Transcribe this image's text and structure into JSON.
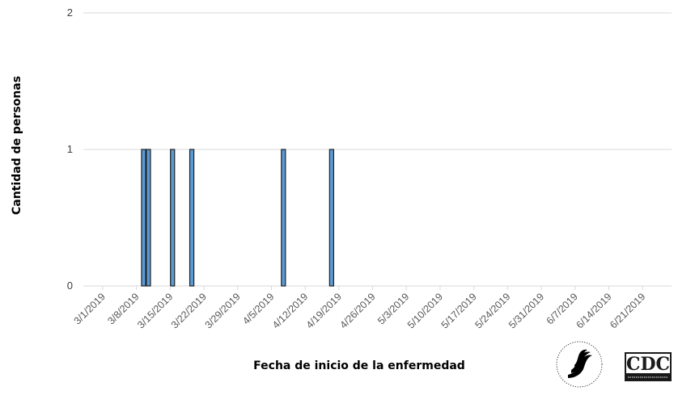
{
  "chart_data": {
    "type": "bar",
    "title": "",
    "xlabel": "Fecha de inicio de la enfermedad",
    "ylabel": "Cantidad de personas",
    "ylim": [
      0,
      2
    ],
    "yticks": [
      "0",
      "1",
      "2"
    ],
    "x_tick_labels": [
      "3/1/2019",
      "3/8/2019",
      "3/15/2019",
      "3/22/2019",
      "3/29/2019",
      "4/5/2019",
      "4/12/2019",
      "4/19/2019",
      "4/26/2019",
      "5/3/2019",
      "5/10/2019",
      "5/17/2019",
      "5/24/2019",
      "5/31/2019",
      "6/7/2019",
      "6/14/2019",
      "6/21/2019"
    ],
    "x_range": [
      "2019-02-25",
      "2019-06-27"
    ],
    "grid": true,
    "bar_color": "#5b9bd5",
    "bars": [
      {
        "x": "2019-03-09",
        "value": 1
      },
      {
        "x": "2019-03-10",
        "value": 1
      },
      {
        "x": "2019-03-15",
        "value": 1
      },
      {
        "x": "2019-03-19",
        "value": 1
      },
      {
        "x": "2019-04-07",
        "value": 1
      },
      {
        "x": "2019-04-17",
        "value": 1
      }
    ]
  },
  "logos": {
    "hhs": "DEPARTMENT OF HEALTH & HUMAN SERVICES USA",
    "cdc": "CDC",
    "cdc_tagline": "CENTERS FOR DISEASE CONTROL AND PREVENTION"
  }
}
